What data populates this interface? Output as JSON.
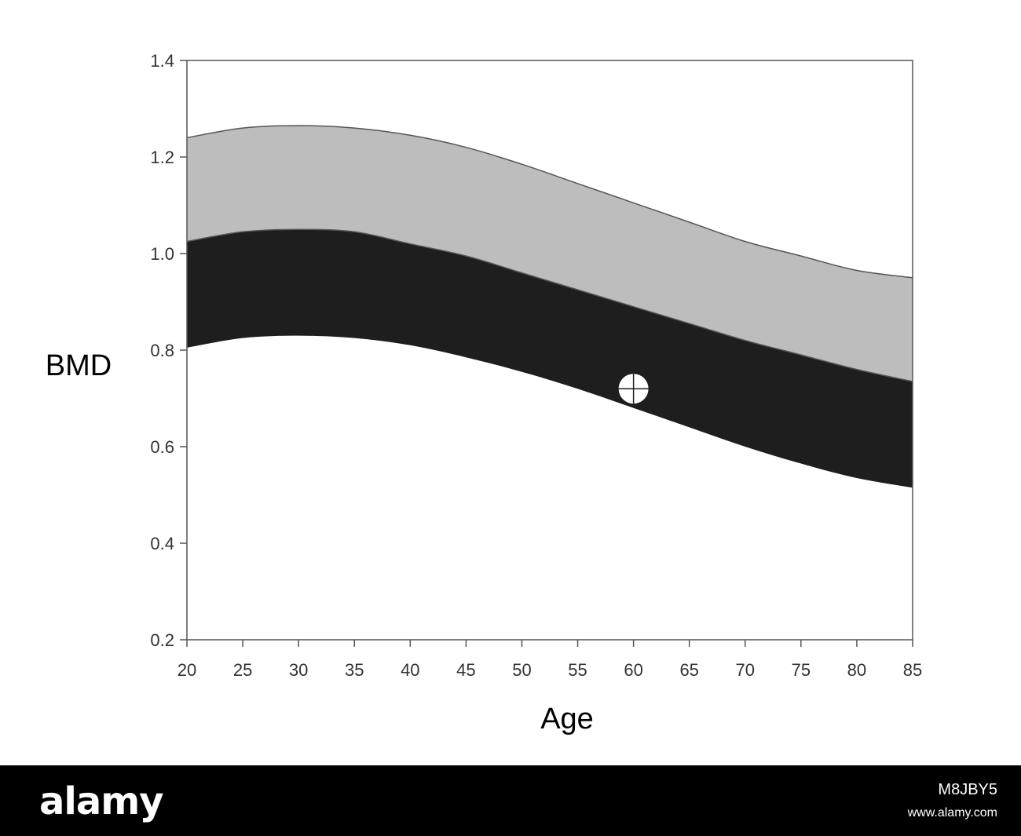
{
  "chart_data": {
    "type": "area",
    "title": "",
    "xlabel": "Age",
    "ylabel": "BMD",
    "xlim": [
      20,
      85
    ],
    "ylim": [
      0.2,
      1.4
    ],
    "x_ticks": [
      "20",
      "25",
      "30",
      "35",
      "40",
      "45",
      "50",
      "55",
      "60",
      "65",
      "70",
      "75",
      "80",
      "85"
    ],
    "y_ticks": [
      "1.4",
      "1.2",
      "1.0",
      "0.8",
      "0.6",
      "0.4",
      "0.2"
    ],
    "grid": false,
    "x": [
      20,
      25,
      30,
      35,
      40,
      45,
      50,
      55,
      60,
      65,
      70,
      75,
      80,
      85
    ],
    "series": [
      {
        "band": "upper",
        "color": "#bdbdbd",
        "lower": [
          1.025,
          1.045,
          1.05,
          1.045,
          1.02,
          0.995,
          0.96,
          0.925,
          0.89,
          0.855,
          0.82,
          0.79,
          0.76,
          0.735
        ],
        "upper": [
          1.24,
          1.26,
          1.265,
          1.26,
          1.245,
          1.22,
          1.185,
          1.145,
          1.105,
          1.065,
          1.025,
          0.995,
          0.965,
          0.95
        ]
      },
      {
        "band": "lower",
        "color": "#1e1e1e",
        "lower": [
          0.805,
          0.825,
          0.83,
          0.825,
          0.81,
          0.785,
          0.755,
          0.72,
          0.68,
          0.64,
          0.6,
          0.565,
          0.535,
          0.515
        ],
        "upper": [
          1.025,
          1.045,
          1.05,
          1.045,
          1.02,
          0.995,
          0.96,
          0.925,
          0.89,
          0.855,
          0.82,
          0.79,
          0.76,
          0.735
        ]
      }
    ],
    "marker": {
      "x": 60,
      "y": 0.72,
      "symbol": "circle-crosshair"
    }
  },
  "watermark": {
    "brand": "alamy",
    "image_id": "M8JBY5",
    "site": "www.alamy.com"
  }
}
